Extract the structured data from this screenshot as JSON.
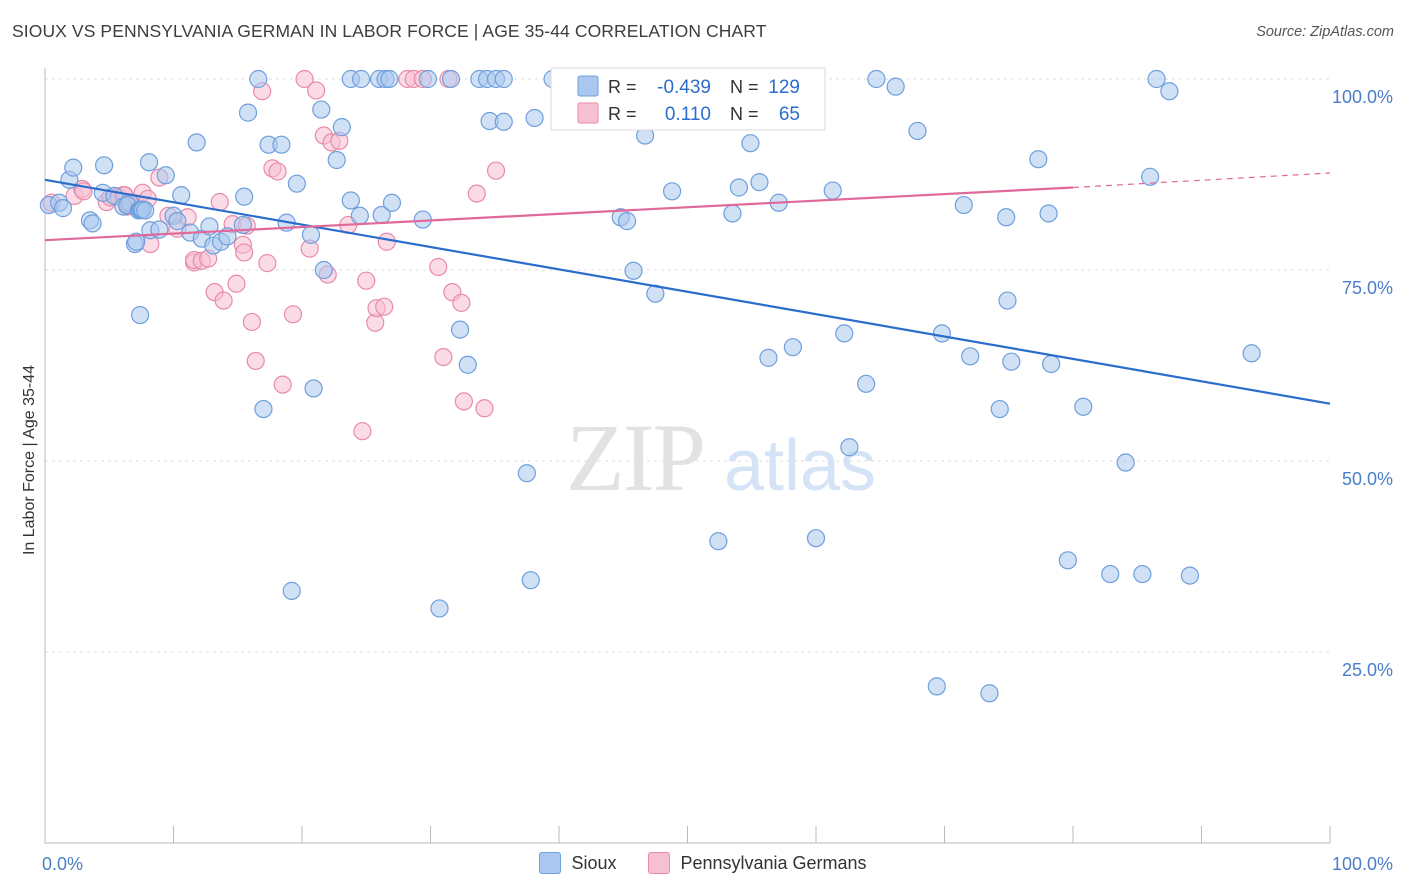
{
  "header": {
    "title": "SIOUX VS PENNSYLVANIA GERMAN IN LABOR FORCE | AGE 35-44 CORRELATION CHART",
    "source": "Source: ZipAtlas.com"
  },
  "watermark": {
    "zip": "ZIP",
    "atlas": "atlas"
  },
  "legend_box": {
    "rows": [
      {
        "r_label": "R =",
        "r_value": "-0.439",
        "n_label": "N =",
        "n_value": "129"
      },
      {
        "r_label": "R =",
        "r_value": "0.110",
        "n_label": "N =",
        "n_value": "65"
      }
    ]
  },
  "colors": {
    "sioux_fill": "#aac8ef",
    "sioux_stroke": "#6f9fdc",
    "sioux_line": "#2a6dcc",
    "pg_fill": "#f7bfd2",
    "pg_stroke": "#e88aab",
    "pg_line": "#e0699a",
    "tick_text": "#4a7ec9",
    "grid": "#dddddd"
  },
  "chart_data": {
    "type": "scatter",
    "title": "SIOUX VS PENNSYLVANIA GERMAN IN LABOR FORCE | AGE 35-44 CORRELATION CHART",
    "xlabel": "",
    "ylabel": "In Labor Force | Age 35-44",
    "xlim": [
      0,
      100
    ],
    "ylim": [
      0,
      105
    ],
    "x_tick_labels": [
      {
        "value": 0,
        "label": "0.0%"
      },
      {
        "value": 100,
        "label": "100.0%"
      }
    ],
    "y_tick_labels": [
      {
        "value": 25,
        "label": "25.0%"
      },
      {
        "value": 50,
        "label": "50.0%"
      },
      {
        "value": 75,
        "label": "75.0%"
      },
      {
        "value": 100,
        "label": "100.0%"
      }
    ],
    "grid": true,
    "legend": "top-center",
    "series": [
      {
        "name": "Sioux",
        "r": -0.439,
        "n": 129,
        "trend": {
          "x": [
            0,
            100
          ],
          "y": [
            86.8,
            57.5
          ]
        },
        "points": [
          [
            0.3,
            83.5
          ],
          [
            1.1,
            83.8
          ],
          [
            1.4,
            83.1
          ],
          [
            1.9,
            86.8
          ],
          [
            2.2,
            88.4
          ],
          [
            3.5,
            81.5
          ],
          [
            3.7,
            81.1
          ],
          [
            4.6,
            88.7
          ],
          [
            4.5,
            85.1
          ],
          [
            5.4,
            84.7
          ],
          [
            6.1,
            83.3
          ],
          [
            6.6,
            83.8
          ],
          [
            6.4,
            83.5
          ],
          [
            7.0,
            78.4
          ],
          [
            7.1,
            78.7
          ],
          [
            7.3,
            82.8
          ],
          [
            7.4,
            82.9
          ],
          [
            7.5,
            82.9
          ],
          [
            7.6,
            82.9
          ],
          [
            7.8,
            82.8
          ],
          [
            7.4,
            69.1
          ],
          [
            8.2,
            80.2
          ],
          [
            8.1,
            89.1
          ],
          [
            8.9,
            80.3
          ],
          [
            9.4,
            87.4
          ],
          [
            10.0,
            82.1
          ],
          [
            10.3,
            81.4
          ],
          [
            10.6,
            84.8
          ],
          [
            11.3,
            79.9
          ],
          [
            11.8,
            91.7
          ],
          [
            12.2,
            79.1
          ],
          [
            12.8,
            80.7
          ],
          [
            13.1,
            78.2
          ],
          [
            13.7,
            78.7
          ],
          [
            14.2,
            79.4
          ],
          [
            15.4,
            80.9
          ],
          [
            15.5,
            84.6
          ],
          [
            15.8,
            95.6
          ],
          [
            16.6,
            100.0
          ],
          [
            17.0,
            56.8
          ],
          [
            17.4,
            91.4
          ],
          [
            18.4,
            91.4
          ],
          [
            18.8,
            81.2
          ],
          [
            19.2,
            33.0
          ],
          [
            19.6,
            86.3
          ],
          [
            20.7,
            79.6
          ],
          [
            20.9,
            59.5
          ],
          [
            21.5,
            96.0
          ],
          [
            21.7,
            75.0
          ],
          [
            22.7,
            89.4
          ],
          [
            23.1,
            93.7
          ],
          [
            23.8,
            84.1
          ],
          [
            23.8,
            100.0
          ],
          [
            24.6,
            100.0
          ],
          [
            24.5,
            82.1
          ],
          [
            26.0,
            100.0
          ],
          [
            26.2,
            82.2
          ],
          [
            26.5,
            100.0
          ],
          [
            26.8,
            100.0
          ],
          [
            27.0,
            83.8
          ],
          [
            29.4,
            81.6
          ],
          [
            29.8,
            100.0
          ],
          [
            30.7,
            30.7
          ],
          [
            31.6,
            100.0
          ],
          [
            32.3,
            67.2
          ],
          [
            32.9,
            62.6
          ],
          [
            33.8,
            100.0
          ],
          [
            34.4,
            100.0
          ],
          [
            35.1,
            100.0
          ],
          [
            34.6,
            94.5
          ],
          [
            35.7,
            94.4
          ],
          [
            35.7,
            100.0
          ],
          [
            37.5,
            48.4
          ],
          [
            37.8,
            34.4
          ],
          [
            38.1,
            94.9
          ],
          [
            39.5,
            100.0
          ],
          [
            40.1,
            100.0
          ],
          [
            41.7,
            100.0
          ],
          [
            42.2,
            100.0
          ],
          [
            44.8,
            81.9
          ],
          [
            45.3,
            81.4
          ],
          [
            45.8,
            74.9
          ],
          [
            46.7,
            92.6
          ],
          [
            47.5,
            71.9
          ],
          [
            48.8,
            85.3
          ],
          [
            49.7,
            95.3
          ],
          [
            50.6,
            100.0
          ],
          [
            51.6,
            100.0
          ],
          [
            52.1,
            100.0
          ],
          [
            52.4,
            39.5
          ],
          [
            53.2,
            100.0
          ],
          [
            53.5,
            82.4
          ],
          [
            54.0,
            85.8
          ],
          [
            54.9,
            91.6
          ],
          [
            55.6,
            86.5
          ],
          [
            56.3,
            63.5
          ],
          [
            57.1,
            83.8
          ],
          [
            58.2,
            64.9
          ],
          [
            59.2,
            100.0
          ],
          [
            59.2,
            100.0
          ],
          [
            60.0,
            39.9
          ],
          [
            61.3,
            85.4
          ],
          [
            62.2,
            66.7
          ],
          [
            62.6,
            51.8
          ],
          [
            63.9,
            60.1
          ],
          [
            64.7,
            100.0
          ],
          [
            66.2,
            99.0
          ],
          [
            67.9,
            93.2
          ],
          [
            69.4,
            20.5
          ],
          [
            69.8,
            66.7
          ],
          [
            71.5,
            83.5
          ],
          [
            72.0,
            63.7
          ],
          [
            73.5,
            19.6
          ],
          [
            74.3,
            56.8
          ],
          [
            74.8,
            81.9
          ],
          [
            74.9,
            71.0
          ],
          [
            75.2,
            63.0
          ],
          [
            77.3,
            89.5
          ],
          [
            78.1,
            82.4
          ],
          [
            78.3,
            62.7
          ],
          [
            79.6,
            37.0
          ],
          [
            80.8,
            57.1
          ],
          [
            82.9,
            35.2
          ],
          [
            84.1,
            49.8
          ],
          [
            85.4,
            35.2
          ],
          [
            86.0,
            87.2
          ],
          [
            86.5,
            100.0
          ],
          [
            87.5,
            98.4
          ],
          [
            89.1,
            35.0
          ],
          [
            93.9,
            64.1
          ]
        ]
      },
      {
        "name": "Pennsylvania Germans",
        "r": 0.11,
        "n": 65,
        "trend": {
          "x": [
            0,
            80,
            100
          ],
          "y": [
            78.9,
            85.8,
            87.7
          ]
        },
        "points": [
          [
            0.5,
            83.8
          ],
          [
            2.3,
            84.7
          ],
          [
            2.9,
            85.6
          ],
          [
            3.0,
            85.3
          ],
          [
            4.8,
            83.9
          ],
          [
            5.1,
            84.5
          ],
          [
            5.7,
            84.6
          ],
          [
            6.1,
            84.8
          ],
          [
            6.2,
            84.8
          ],
          [
            6.4,
            83.3
          ],
          [
            6.5,
            83.6
          ],
          [
            7.1,
            83.7
          ],
          [
            7.6,
            85.1
          ],
          [
            8.0,
            84.3
          ],
          [
            8.2,
            78.4
          ],
          [
            8.9,
            87.1
          ],
          [
            9.6,
            82.1
          ],
          [
            10.3,
            80.4
          ],
          [
            11.1,
            81.9
          ],
          [
            11.6,
            76.0
          ],
          [
            11.6,
            76.3
          ],
          [
            12.2,
            76.2
          ],
          [
            12.7,
            76.5
          ],
          [
            13.2,
            72.1
          ],
          [
            13.6,
            83.9
          ],
          [
            13.9,
            71.0
          ],
          [
            14.6,
            81.0
          ],
          [
            14.9,
            73.2
          ],
          [
            15.4,
            78.3
          ],
          [
            15.5,
            77.3
          ],
          [
            15.7,
            80.8
          ],
          [
            16.1,
            68.2
          ],
          [
            16.4,
            63.1
          ],
          [
            16.9,
            98.4
          ],
          [
            17.3,
            75.9
          ],
          [
            17.7,
            88.3
          ],
          [
            18.1,
            87.9
          ],
          [
            18.5,
            60.0
          ],
          [
            19.3,
            69.2
          ],
          [
            20.2,
            100.0
          ],
          [
            20.6,
            77.8
          ],
          [
            21.1,
            98.5
          ],
          [
            21.7,
            92.6
          ],
          [
            22.0,
            74.4
          ],
          [
            22.3,
            91.7
          ],
          [
            22.9,
            91.9
          ],
          [
            23.6,
            80.9
          ],
          [
            24.7,
            53.9
          ],
          [
            25.0,
            73.6
          ],
          [
            25.7,
            68.1
          ],
          [
            25.8,
            70.0
          ],
          [
            26.4,
            70.2
          ],
          [
            26.6,
            78.7
          ],
          [
            28.2,
            100.0
          ],
          [
            28.7,
            100.0
          ],
          [
            29.4,
            100.0
          ],
          [
            30.6,
            75.4
          ],
          [
            31.0,
            63.6
          ],
          [
            31.4,
            100.0
          ],
          [
            31.7,
            72.1
          ],
          [
            32.6,
            57.8
          ],
          [
            32.4,
            70.7
          ],
          [
            33.6,
            85.0
          ],
          [
            34.2,
            56.9
          ],
          [
            35.1,
            88.0
          ]
        ]
      }
    ]
  },
  "bottom_legend": {
    "sioux": "Sioux",
    "pg": "Pennsylvania Germans"
  }
}
